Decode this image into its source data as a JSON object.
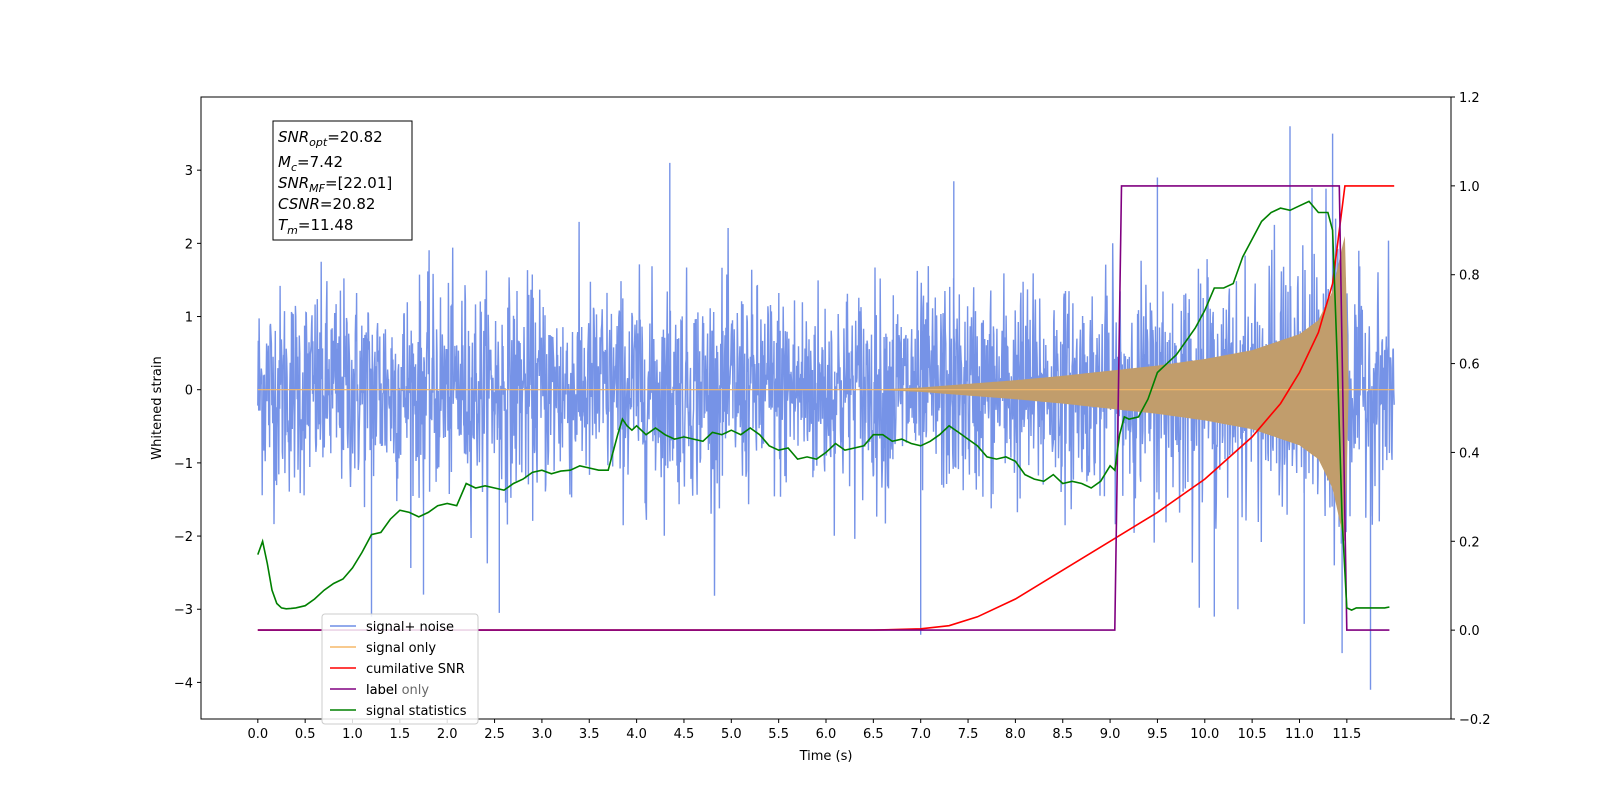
{
  "chart_data": {
    "type": "line",
    "xlabel": "Time (s)",
    "ylabel": "Whitened strain",
    "xlim": [
      -0.6,
      12.6
    ],
    "ylim": [
      -4.5,
      4.0
    ],
    "y2lim": [
      -0.2,
      1.2
    ],
    "x_ticks": [
      "0.0",
      "0.5",
      "1.0",
      "1.5",
      "2.0",
      "2.5",
      "3.0",
      "3.5",
      "4.0",
      "4.5",
      "5.0",
      "5.5",
      "6.0",
      "6.5",
      "7.0",
      "7.5",
      "8.0",
      "8.5",
      "9.0",
      "9.5",
      "10.0",
      "10.5",
      "11.0",
      "11.5"
    ],
    "y_ticks": [
      "3",
      "2",
      "1",
      "0",
      "−1",
      "−2",
      "−3",
      "−4"
    ],
    "y2_ticks": [
      "1.2",
      "1.0",
      "0.8",
      "0.6",
      "0.4",
      "0.2",
      "0.0",
      "−0.2"
    ],
    "grid": false,
    "legend_position": "lower-left",
    "info_box": [
      {
        "base": "SNR",
        "sub": "opt",
        "rest": "=20.82"
      },
      {
        "base": "M",
        "sub": "c",
        "rest": "=7.42"
      },
      {
        "base": "SNR",
        "sub": "MF",
        "rest": "=[22.01]"
      },
      {
        "base": "CSNR",
        "sub": "",
        "rest": "=20.82"
      },
      {
        "base": "T",
        "sub": "m",
        "rest": "=11.48"
      }
    ],
    "series": [
      {
        "name": "signal+ noise",
        "color": "#6f8de6",
        "axis": "left",
        "t_start": 0.0,
        "t_end": 12.0,
        "noise_std": 0.7,
        "spikes": [
          [
            1.2,
            -3.1
          ],
          [
            2.55,
            -3.05
          ],
          [
            4.35,
            3.1
          ],
          [
            7.0,
            -3.35
          ],
          [
            7.35,
            2.85
          ],
          [
            9.5,
            2.9
          ],
          [
            10.1,
            -3.1
          ],
          [
            10.9,
            3.6
          ],
          [
            11.05,
            -3.2
          ],
          [
            11.35,
            3.5
          ],
          [
            11.45,
            -3.6
          ],
          [
            11.75,
            -4.1
          ],
          [
            10.35,
            -3.0
          ],
          [
            1.75,
            -2.8
          ]
        ]
      },
      {
        "name": "signal only",
        "color": "#f5b869",
        "axis": "left",
        "t_start": 0.0,
        "t_end": 12.0,
        "merger_time": 11.48,
        "envelope": {
          "x": [
            0.0,
            6.5,
            7.0,
            7.5,
            8.0,
            8.5,
            9.0,
            9.5,
            10.0,
            10.5,
            11.0,
            11.2,
            11.35,
            11.45,
            11.48,
            11.52,
            12.0
          ],
          "y": [
            0.0,
            0.0,
            0.03,
            0.08,
            0.13,
            0.19,
            0.26,
            0.33,
            0.42,
            0.54,
            0.76,
            0.95,
            1.35,
            1.95,
            2.1,
            0.0,
            0.0
          ]
        },
        "fill_color": "#c19d6c"
      },
      {
        "name": "cumilative SNR",
        "color": "#ff0000",
        "axis": "right",
        "x": [
          0.0,
          6.5,
          7.0,
          7.3,
          7.6,
          8.0,
          8.5,
          9.0,
          9.5,
          10.0,
          10.5,
          10.8,
          11.0,
          11.2,
          11.35,
          11.48,
          12.0
        ],
        "y": [
          0.0,
          0.0,
          0.003,
          0.01,
          0.03,
          0.07,
          0.135,
          0.2,
          0.265,
          0.34,
          0.435,
          0.51,
          0.58,
          0.67,
          0.78,
          1.0,
          1.0
        ]
      },
      {
        "name": "label",
        "color": "#800080",
        "axis": "right",
        "x": [
          0.0,
          9.05,
          9.12,
          11.42,
          11.5,
          11.95
        ],
        "y": [
          0.0,
          0.0,
          1.0,
          1.0,
          0.0,
          0.0
        ]
      },
      {
        "name": "signal statistics",
        "color": "#008000",
        "axis": "right",
        "x": [
          0.0,
          0.05,
          0.1,
          0.15,
          0.2,
          0.25,
          0.3,
          0.35,
          0.4,
          0.5,
          0.6,
          0.7,
          0.8,
          0.9,
          1.0,
          1.1,
          1.2,
          1.3,
          1.4,
          1.5,
          1.6,
          1.7,
          1.8,
          1.9,
          2.0,
          2.1,
          2.2,
          2.3,
          2.4,
          2.5,
          2.6,
          2.7,
          2.8,
          2.9,
          3.0,
          3.1,
          3.2,
          3.3,
          3.4,
          3.5,
          3.6,
          3.7,
          3.8,
          3.85,
          3.9,
          3.95,
          4.0,
          4.1,
          4.2,
          4.3,
          4.4,
          4.5,
          4.6,
          4.7,
          4.8,
          4.9,
          5.0,
          5.1,
          5.2,
          5.3,
          5.4,
          5.5,
          5.6,
          5.7,
          5.8,
          5.9,
          6.0,
          6.1,
          6.2,
          6.3,
          6.4,
          6.5,
          6.6,
          6.7,
          6.8,
          6.9,
          7.0,
          7.1,
          7.2,
          7.3,
          7.4,
          7.5,
          7.6,
          7.7,
          7.8,
          7.9,
          8.0,
          8.1,
          8.2,
          8.3,
          8.4,
          8.5,
          8.6,
          8.7,
          8.8,
          8.9,
          9.0,
          9.05,
          9.1,
          9.15,
          9.2,
          9.3,
          9.4,
          9.5,
          9.6,
          9.7,
          9.8,
          9.9,
          10.0,
          10.1,
          10.2,
          10.3,
          10.4,
          10.5,
          10.6,
          10.7,
          10.8,
          10.9,
          11.0,
          11.1,
          11.2,
          11.3,
          11.35,
          11.4,
          11.45,
          11.5,
          11.55,
          11.6,
          11.7,
          11.8,
          11.9,
          11.95
        ],
        "y": [
          0.17,
          0.2,
          0.15,
          0.09,
          0.06,
          0.05,
          0.048,
          0.049,
          0.05,
          0.055,
          0.07,
          0.09,
          0.105,
          0.115,
          0.14,
          0.175,
          0.215,
          0.22,
          0.25,
          0.27,
          0.265,
          0.255,
          0.265,
          0.28,
          0.285,
          0.28,
          0.33,
          0.32,
          0.325,
          0.32,
          0.315,
          0.33,
          0.34,
          0.355,
          0.36,
          0.352,
          0.358,
          0.36,
          0.37,
          0.365,
          0.36,
          0.36,
          0.44,
          0.475,
          0.46,
          0.45,
          0.46,
          0.44,
          0.455,
          0.44,
          0.43,
          0.435,
          0.43,
          0.425,
          0.445,
          0.44,
          0.45,
          0.44,
          0.455,
          0.44,
          0.415,
          0.405,
          0.41,
          0.385,
          0.39,
          0.385,
          0.4,
          0.42,
          0.405,
          0.41,
          0.415,
          0.44,
          0.44,
          0.425,
          0.43,
          0.42,
          0.415,
          0.425,
          0.44,
          0.46,
          0.445,
          0.43,
          0.415,
          0.39,
          0.385,
          0.39,
          0.38,
          0.35,
          0.34,
          0.335,
          0.35,
          0.33,
          0.335,
          0.33,
          0.32,
          0.335,
          0.37,
          0.36,
          0.44,
          0.48,
          0.475,
          0.48,
          0.52,
          0.58,
          0.6,
          0.62,
          0.65,
          0.68,
          0.72,
          0.77,
          0.77,
          0.78,
          0.84,
          0.88,
          0.92,
          0.94,
          0.95,
          0.945,
          0.955,
          0.965,
          0.94,
          0.94,
          0.9,
          0.6,
          0.25,
          0.05,
          0.045,
          0.05,
          0.05,
          0.05,
          0.05,
          0.052
        ]
      }
    ],
    "legend_entries": [
      "signal+ noise",
      "signal only",
      "cumilative SNR",
      "label",
      "signal statistics"
    ],
    "legend_hidden_text": "label only"
  }
}
